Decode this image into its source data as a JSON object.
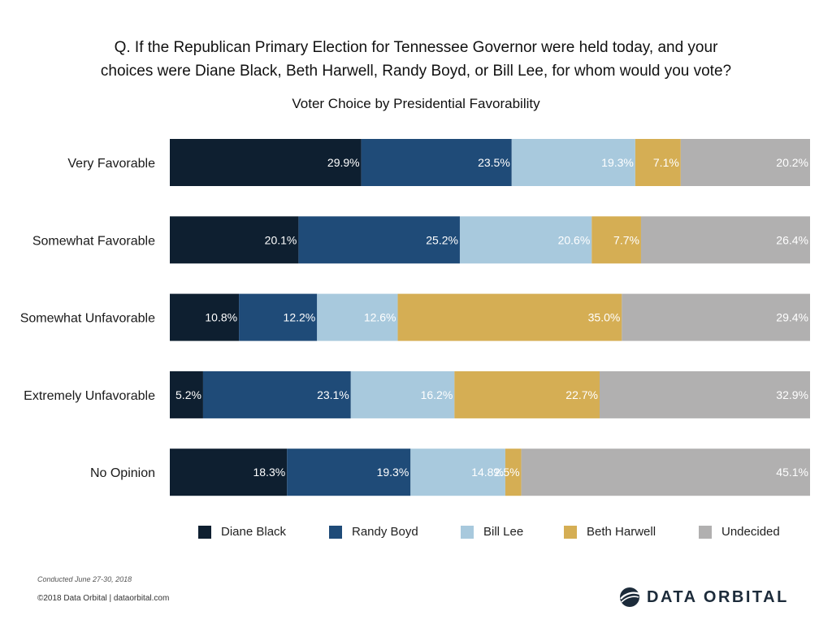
{
  "header": {
    "title_line1": "Q. If the Republican Primary Election for Tennessee Governor were held today, and your",
    "title_line2": "choices were Diane Black, Beth Harwell, Randy Boyd, or Bill Lee, for whom would you vote?",
    "subtitle": "Voter Choice by Presidential Favorability"
  },
  "colors": {
    "Diane Black": "#0e1f30",
    "Randy Boyd": "#1f4b78",
    "Bill Lee": "#a8c9dd",
    "Beth Harwell": "#d5ae54",
    "Undecided": "#b1b0b0"
  },
  "chart_data": {
    "type": "bar",
    "orientation": "horizontal",
    "stacked": true,
    "categories": [
      "Very Favorable",
      "Somewhat Favorable",
      "Somewhat Unfavorable",
      "Extremely Unfavorable",
      "No Opinion"
    ],
    "series": [
      {
        "name": "Diane Black",
        "values": [
          29.9,
          20.1,
          10.8,
          5.2,
          18.3
        ],
        "labels": [
          "29.9%",
          "20.1%",
          "10.8%",
          "5.2%",
          "18.3%"
        ]
      },
      {
        "name": "Randy Boyd",
        "values": [
          23.5,
          25.2,
          12.2,
          23.1,
          19.3
        ],
        "labels": [
          "23.5%",
          "25.2%",
          "12.2%",
          "23.1%",
          "19.3%"
        ]
      },
      {
        "name": "Bill Lee",
        "values": [
          19.3,
          20.6,
          12.6,
          16.2,
          14.8
        ],
        "labels": [
          "19.3%",
          "20.6%",
          "12.6%",
          "16.2%",
          "14.8%"
        ]
      },
      {
        "name": "Beth Harwell",
        "values": [
          7.1,
          7.7,
          35.0,
          22.7,
          2.5
        ],
        "labels": [
          "7.1%",
          "7.7%",
          "35.0%",
          "22.7%",
          "2.5%"
        ]
      },
      {
        "name": "Undecided",
        "values": [
          20.2,
          26.4,
          29.4,
          32.9,
          45.1
        ],
        "labels": [
          "20.2%",
          "26.4%",
          "29.4%",
          "32.9%",
          "45.1%"
        ]
      }
    ],
    "xlim": [
      0,
      100
    ],
    "legend_position": "bottom"
  },
  "legend": [
    {
      "label": "Diane Black",
      "color": "#0e1f30"
    },
    {
      "label": "Randy Boyd",
      "color": "#1f4b78"
    },
    {
      "label": "Bill Lee",
      "color": "#a8c9dd"
    },
    {
      "label": "Beth Harwell",
      "color": "#d5ae54"
    },
    {
      "label": "Undecided",
      "color": "#b1b0b0"
    }
  ],
  "footer": {
    "conducted": "Conducted June 27-30, 2018",
    "copyright": "©2018 Data Orbital | dataorbital.com",
    "logo_text": "DATA ORBITAL"
  }
}
